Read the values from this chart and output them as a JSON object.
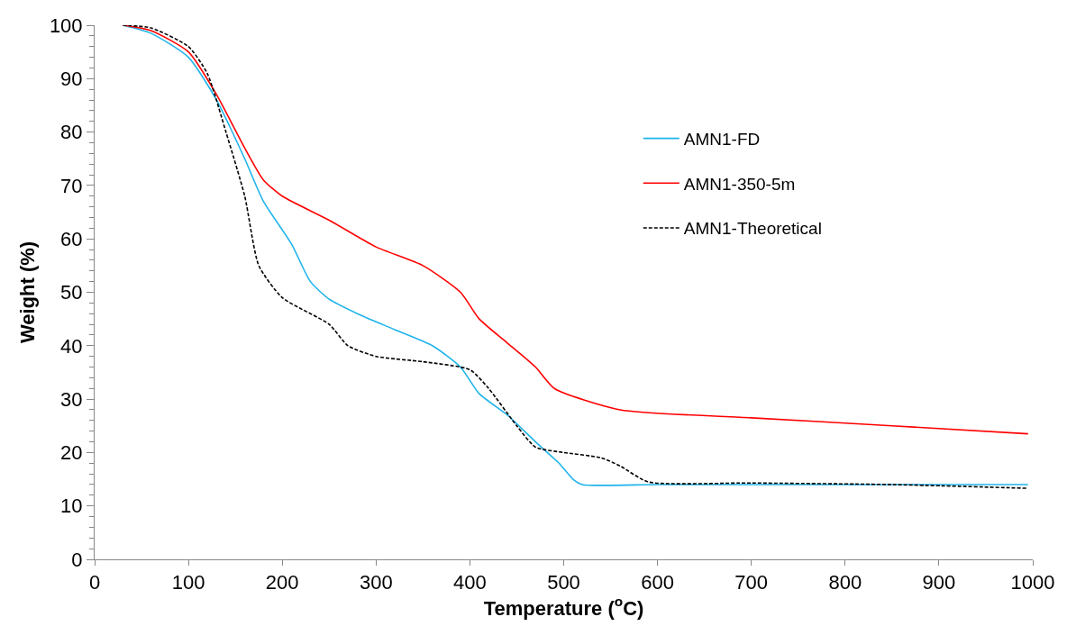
{
  "chart_data": {
    "type": "line",
    "xlabel": "Temperature ($^{o}$C)",
    "ylabel": "Weight (%)",
    "xlim": [
      0,
      1000
    ],
    "xticks": [
      0,
      100,
      200,
      300,
      400,
      500,
      600,
      700,
      800,
      900,
      1000
    ],
    "ylim": [
      0,
      100
    ],
    "yticks": [
      0,
      10,
      20,
      30,
      40,
      50,
      60,
      70,
      80,
      90,
      100
    ],
    "legend": "right",
    "marker": "none",
    "series": [
      {
        "name": "AMN1-FD",
        "color": "#1fb4ea",
        "line_style": "solid",
        "x": [
          30,
          60,
          100,
          130,
          160,
          180,
          210,
          230,
          250,
          280,
          320,
          360,
          390,
          410,
          440,
          470,
          495,
          510,
          520,
          600,
          800,
          995
        ],
        "values": [
          100,
          98.5,
          94,
          86,
          75,
          67,
          59,
          52,
          48.7,
          46,
          43,
          40,
          36,
          31,
          27,
          22,
          18,
          15,
          14,
          14,
          14,
          14
        ]
      },
      {
        "name": "AMN1-350-5m",
        "color": "#ff0000",
        "line_style": "solid",
        "x": [
          30,
          60,
          100,
          130,
          160,
          180,
          200,
          250,
          300,
          350,
          390,
          410,
          440,
          470,
          490,
          560,
          700,
          850,
          995
        ],
        "values": [
          100,
          99,
          95,
          87,
          77,
          71,
          68,
          63.5,
          58.5,
          55,
          50,
          45,
          40.5,
          36,
          32,
          28,
          26.5,
          25,
          23.5
        ]
      },
      {
        "name": "AMN1-Theoretical",
        "color": "#000000",
        "line_style": "dashed",
        "x": [
          30,
          60,
          100,
          120,
          140,
          160,
          175,
          200,
          250,
          270,
          300,
          350,
          400,
          420,
          450,
          470,
          500,
          540,
          560,
          590,
          700,
          850,
          995
        ],
        "values": [
          100,
          99.5,
          96,
          91,
          80,
          68,
          55,
          49,
          44,
          40,
          38,
          37,
          35.5,
          32,
          25,
          21,
          20,
          19,
          17.5,
          14.5,
          14.3,
          14,
          13.3
        ]
      }
    ]
  }
}
